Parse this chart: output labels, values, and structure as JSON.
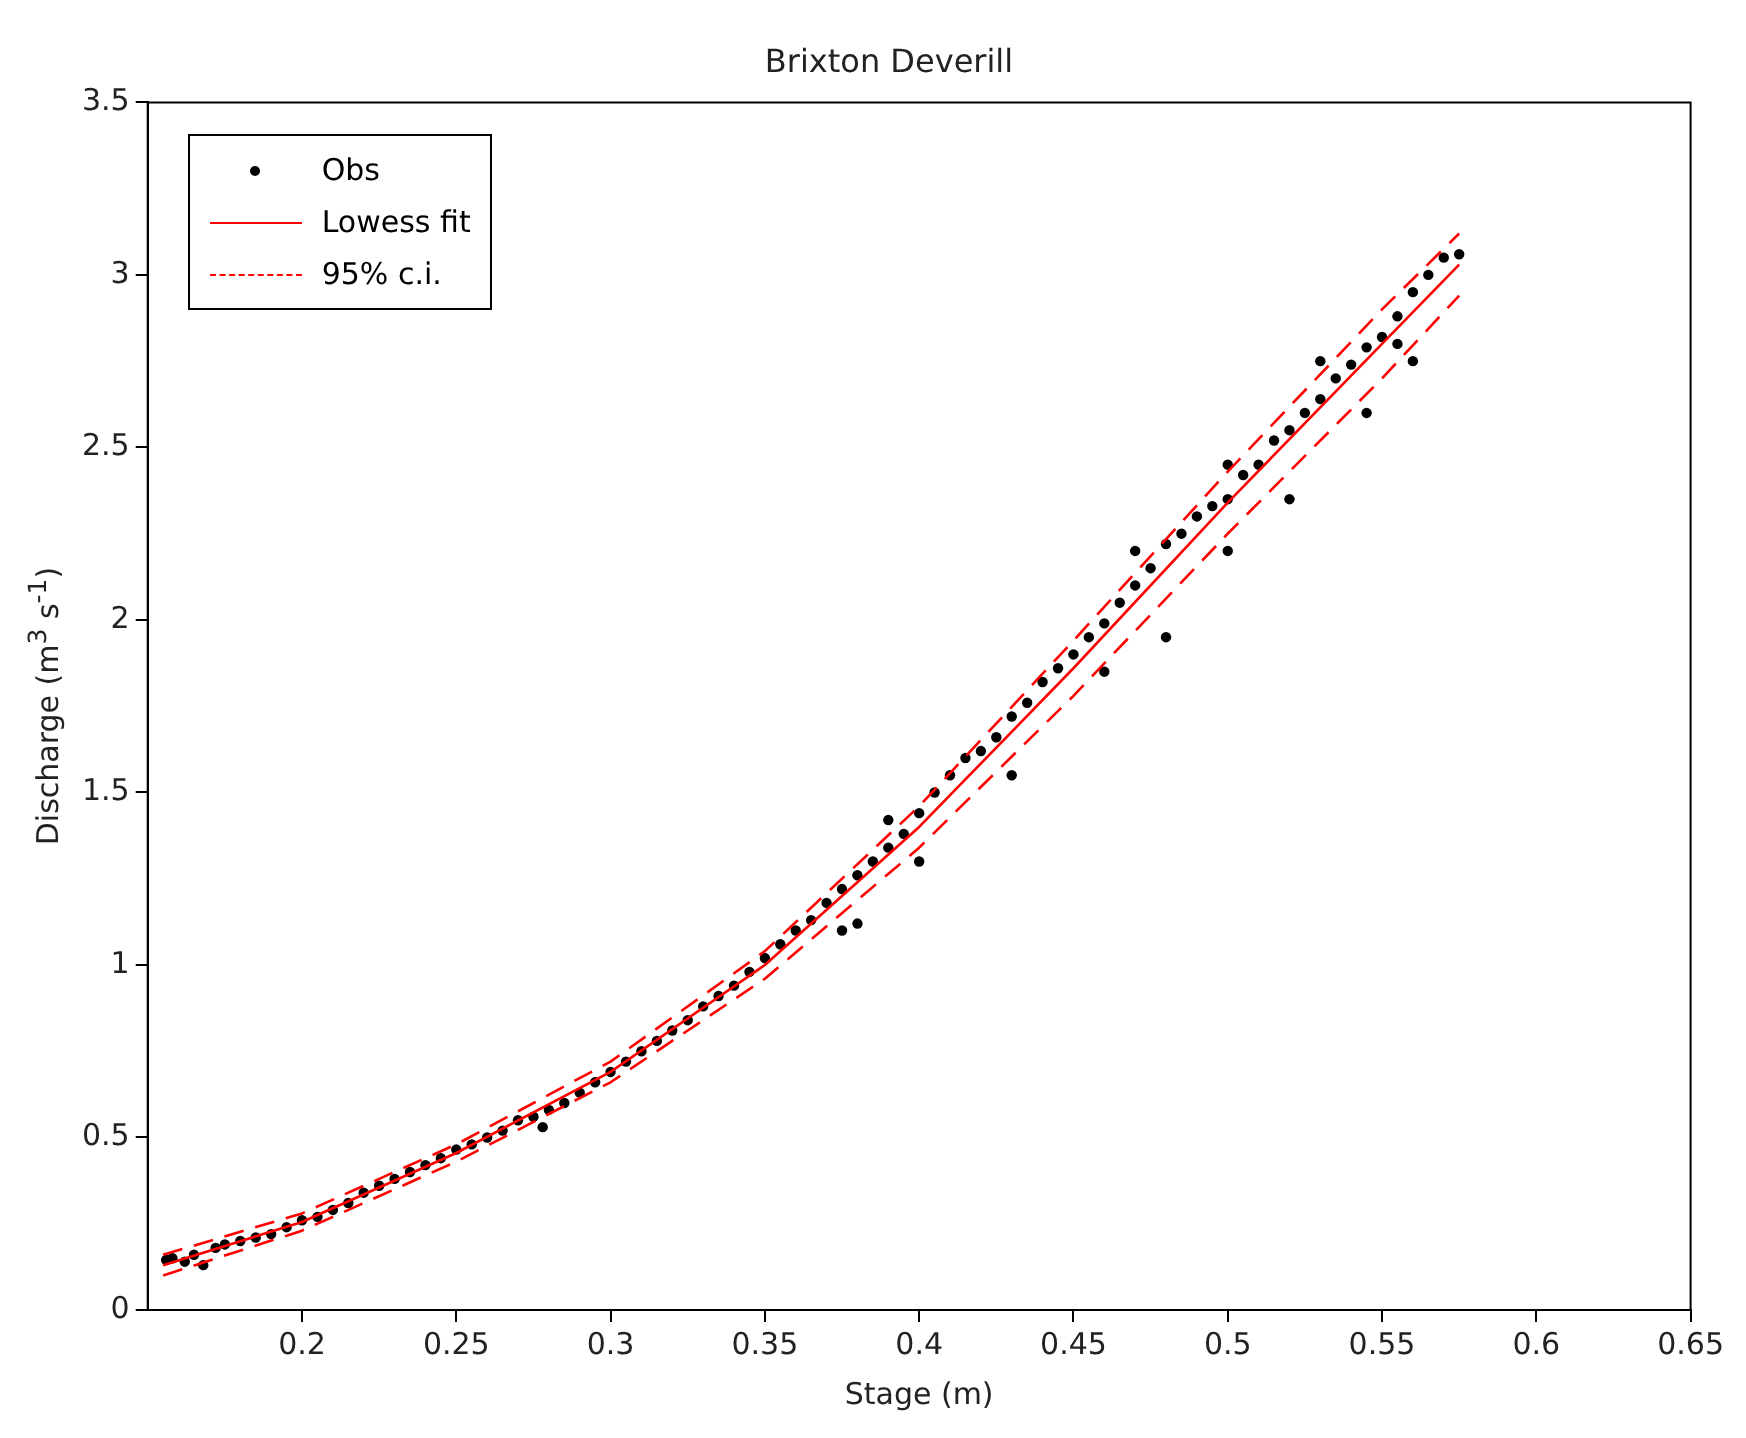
{
  "chart_data": {
    "type": "scatter",
    "title": "Brixton Deverill",
    "xlabel": "Stage (m)",
    "ylabel": "Discharge (m$^{3}$ s$^{-1}$)",
    "xlim": [
      0.15,
      0.65
    ],
    "xticks": [
      0.2,
      0.25,
      0.3,
      0.35,
      0.4,
      0.45,
      0.5,
      0.55,
      0.6,
      0.65
    ],
    "ylim": [
      0,
      3.5
    ],
    "yticks": [
      0,
      0.5,
      1,
      1.5,
      2,
      2.5,
      3,
      3.5
    ],
    "grid": false,
    "legend": "top left",
    "series": [
      {
        "name": "Obs",
        "marker": "circle",
        "color": "#000000",
        "x": [
          0.156,
          0.158,
          0.162,
          0.165,
          0.168,
          0.172,
          0.175,
          0.18,
          0.185,
          0.19,
          0.195,
          0.2,
          0.205,
          0.21,
          0.215,
          0.22,
          0.225,
          0.23,
          0.235,
          0.24,
          0.245,
          0.25,
          0.255,
          0.26,
          0.265,
          0.27,
          0.275,
          0.278,
          0.28,
          0.285,
          0.29,
          0.295,
          0.3,
          0.305,
          0.31,
          0.315,
          0.32,
          0.325,
          0.33,
          0.335,
          0.34,
          0.345,
          0.35,
          0.355,
          0.36,
          0.365,
          0.37,
          0.375,
          0.38,
          0.375,
          0.38,
          0.385,
          0.39,
          0.395,
          0.4,
          0.405,
          0.41,
          0.415,
          0.42,
          0.425,
          0.43,
          0.435,
          0.44,
          0.445,
          0.45,
          0.455,
          0.46,
          0.465,
          0.47,
          0.475,
          0.48,
          0.485,
          0.49,
          0.495,
          0.5,
          0.505,
          0.51,
          0.515,
          0.52,
          0.525,
          0.53,
          0.535,
          0.54,
          0.545,
          0.55,
          0.555,
          0.56,
          0.565,
          0.57,
          0.575,
          0.4,
          0.43,
          0.46,
          0.48,
          0.5,
          0.52,
          0.545,
          0.56,
          0.39,
          0.47,
          0.5,
          0.53,
          0.555
        ],
        "values": [
          0.145,
          0.15,
          0.14,
          0.16,
          0.13,
          0.18,
          0.19,
          0.2,
          0.21,
          0.22,
          0.24,
          0.26,
          0.27,
          0.29,
          0.31,
          0.34,
          0.36,
          0.38,
          0.4,
          0.42,
          0.44,
          0.465,
          0.48,
          0.5,
          0.52,
          0.55,
          0.56,
          0.53,
          0.58,
          0.6,
          0.63,
          0.66,
          0.69,
          0.72,
          0.75,
          0.78,
          0.81,
          0.84,
          0.88,
          0.91,
          0.94,
          0.98,
          1.02,
          1.06,
          1.1,
          1.13,
          1.18,
          1.1,
          1.12,
          1.22,
          1.26,
          1.3,
          1.34,
          1.38,
          1.44,
          1.5,
          1.55,
          1.6,
          1.62,
          1.66,
          1.72,
          1.76,
          1.82,
          1.86,
          1.9,
          1.95,
          1.99,
          2.05,
          2.1,
          2.15,
          2.22,
          2.25,
          2.3,
          2.33,
          2.35,
          2.42,
          2.45,
          2.52,
          2.55,
          2.6,
          2.64,
          2.7,
          2.74,
          2.79,
          2.82,
          2.88,
          2.95,
          3.0,
          3.05,
          3.06,
          1.3,
          1.55,
          1.85,
          1.95,
          2.2,
          2.35,
          2.6,
          2.75,
          1.42,
          2.2,
          2.45,
          2.75,
          2.8
        ]
      },
      {
        "name": "Lowess fit",
        "type": "line",
        "marker": "none",
        "line_style": "solid",
        "color": "#ff0000",
        "x": [
          0.155,
          0.2,
          0.25,
          0.3,
          0.35,
          0.4,
          0.45,
          0.5,
          0.55,
          0.575
        ],
        "values": [
          0.13,
          0.255,
          0.455,
          0.69,
          1.0,
          1.4,
          1.86,
          2.34,
          2.8,
          3.03
        ]
      },
      {
        "name": "95% c.i.",
        "type": "line",
        "marker": "none",
        "line_style": "dashed",
        "color": "#ff0000",
        "x": [
          0.155,
          0.2,
          0.25,
          0.3,
          0.35,
          0.4,
          0.45,
          0.5,
          0.55,
          0.575
        ],
        "values": [
          0.16,
          0.28,
          0.48,
          0.72,
          1.04,
          1.46,
          1.94,
          2.43,
          2.9,
          3.12
        ]
      },
      {
        "type": "line",
        "marker": "none",
        "line_style": "dashed",
        "color": "#ff0000",
        "x": [
          0.155,
          0.2,
          0.25,
          0.3,
          0.35,
          0.4,
          0.45,
          0.5,
          0.55,
          0.575
        ],
        "values": [
          0.1,
          0.23,
          0.43,
          0.66,
          0.96,
          1.34,
          1.78,
          2.25,
          2.7,
          2.94
        ]
      }
    ]
  }
}
